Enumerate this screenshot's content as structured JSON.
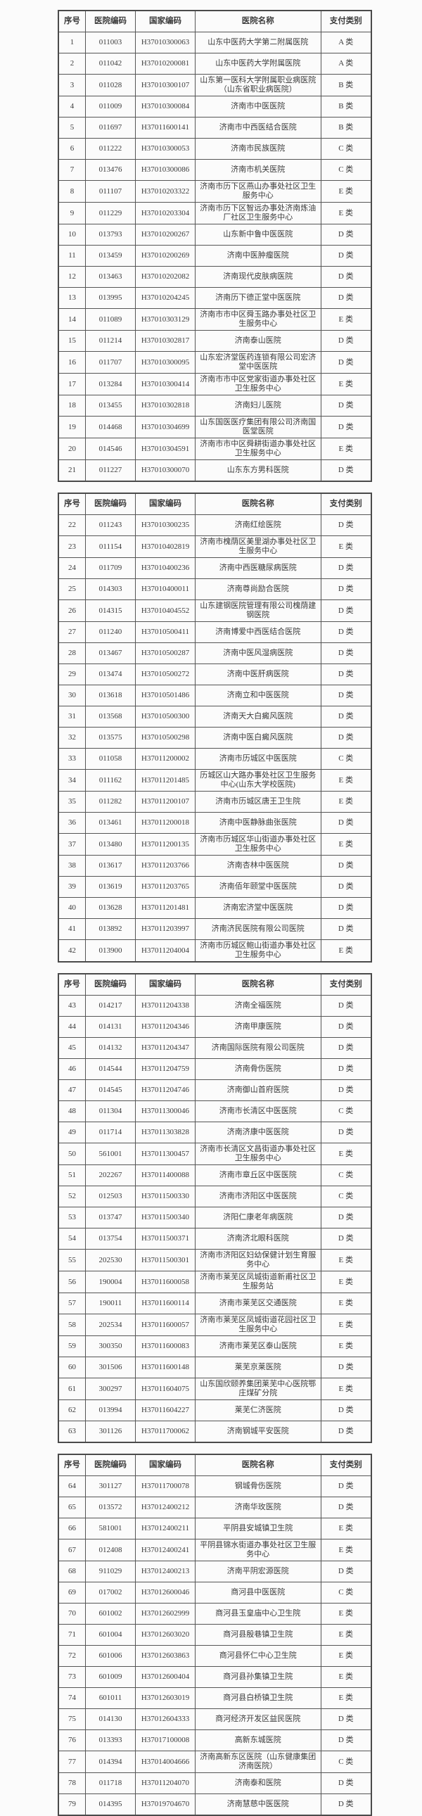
{
  "page": {
    "background": "#fbfbfb",
    "text_color": "#3b3b3b",
    "border_color": "#4a4a4a",
    "description_labels": {
      "document_type": "hospital-payment-category-list"
    }
  },
  "columns": [
    "序号",
    "医院编码",
    "国家编码",
    "医院名称",
    "支付类别"
  ],
  "tables": [
    {
      "rows": [
        [
          "1",
          "011003",
          "H37010300063",
          "山东中医药大学第二附属医院",
          "A 类"
        ],
        [
          "2",
          "011042",
          "H37010200081",
          "山东中医药大学附属医院",
          "A 类"
        ],
        [
          "3",
          "011028",
          "H37010300107",
          "山东第一医科大学附属职业病医院（山东省职业病医院）",
          "B 类"
        ],
        [
          "4",
          "011009",
          "H37010300084",
          "济南市中医医院",
          "B 类"
        ],
        [
          "5",
          "011697",
          "H37011600141",
          "济南市中西医结合医院",
          "B 类"
        ],
        [
          "6",
          "011222",
          "H37010300053",
          "济南市民族医院",
          "C 类"
        ],
        [
          "7",
          "013476",
          "H37010300086",
          "济南市机关医院",
          "C 类"
        ],
        [
          "8",
          "011107",
          "H37010203322",
          "济南市历下区燕山办事处社区卫生服务中心",
          "E 类"
        ],
        [
          "9",
          "011229",
          "H37010203304",
          "济南市历下区智远办事处济南炼油厂社区卫生服务中心",
          "E 类"
        ],
        [
          "10",
          "013793",
          "H37010200267",
          "山东新中鲁中医医院",
          "D 类"
        ],
        [
          "11",
          "013459",
          "H37010200269",
          "济南中医肿瘤医院",
          "D 类"
        ],
        [
          "12",
          "013463",
          "H37010202082",
          "济南现代皮肤病医院",
          "D 类"
        ],
        [
          "13",
          "013995",
          "H37010204245",
          "济南历下德正堂中医医院",
          "D 类"
        ],
        [
          "14",
          "011089",
          "H37010303129",
          "济南市市中区舜玉路办事处社区卫生服务中心",
          "E 类"
        ],
        [
          "15",
          "011214",
          "H37010302817",
          "济南泰山医院",
          "D 类"
        ],
        [
          "16",
          "011707",
          "H37010300095",
          "山东宏济堂医药连锁有限公司宏济堂中医医院",
          "D 类"
        ],
        [
          "17",
          "013284",
          "H37010300414",
          "济南市市中区党家街道办事处社区卫生服务中心",
          "E 类"
        ],
        [
          "18",
          "013455",
          "H37010302818",
          "济南妇儿医院",
          "D 类"
        ],
        [
          "19",
          "014468",
          "H37010304699",
          "山东国医医疗集团有限公司济南国医堂医院",
          "D 类"
        ],
        [
          "20",
          "014546",
          "H37010304591",
          "济南市市中区舜耕街道办事处社区卫生服务中心",
          "E 类"
        ],
        [
          "21",
          "011227",
          "H37010300070",
          "山东东方男科医院",
          "D 类"
        ]
      ]
    },
    {
      "rows": [
        [
          "22",
          "011243",
          "H37010300235",
          "济南红绘医院",
          "D 类"
        ],
        [
          "23",
          "011154",
          "H37010402819",
          "济南市槐荫区美里湖办事处社区卫生服务中心",
          "E 类"
        ],
        [
          "24",
          "011709",
          "H37010400236",
          "济南中西医糖尿病医院",
          "D 类"
        ],
        [
          "25",
          "014303",
          "H37010400011",
          "济南尊尚励合医院",
          "D 类"
        ],
        [
          "26",
          "014315",
          "H37010404552",
          "山东建钢医院管理有限公司槐荫建钢医院",
          "D 类"
        ],
        [
          "27",
          "011240",
          "H37010500411",
          "济南博爱中西医结合医院",
          "D 类"
        ],
        [
          "28",
          "013467",
          "H37010500287",
          "济南中医风湿病医院",
          "D 类"
        ],
        [
          "29",
          "013474",
          "H37010500272",
          "济南中医肝病医院",
          "D 类"
        ],
        [
          "30",
          "013618",
          "H37010501486",
          "济南立和中医医院",
          "D 类"
        ],
        [
          "31",
          "013568",
          "H37010500300",
          "济南天大白癜风医院",
          "D 类"
        ],
        [
          "32",
          "013575",
          "H37010500298",
          "济南中医白癜风医院",
          "D 类"
        ],
        [
          "33",
          "011058",
          "H37011200002",
          "济南市历城区中医医院",
          "C 类"
        ],
        [
          "34",
          "011162",
          "H37011201485",
          "历城区山大路办事处社区卫生服务中心(山东大学校医院)",
          "E 类"
        ],
        [
          "35",
          "011282",
          "H37011200107",
          "济南市历城区唐王卫生院",
          "E 类"
        ],
        [
          "36",
          "013461",
          "H37011200018",
          "济南中医静脉曲张医院",
          "D 类"
        ],
        [
          "37",
          "013480",
          "H37011200135",
          "济南市历城区华山街道办事处社区卫生服务中心",
          "E 类"
        ],
        [
          "38",
          "013617",
          "H37011203766",
          "济南杏林中医医院",
          "D 类"
        ],
        [
          "39",
          "013619",
          "H37011203765",
          "济南佰年颐堂中医医院",
          "D 类"
        ],
        [
          "40",
          "013628",
          "H37011201481",
          "济南宏济堂中医医院",
          "D 类"
        ],
        [
          "41",
          "013892",
          "H37011203997",
          "济南济民医院有限公司医院",
          "D 类"
        ],
        [
          "42",
          "013900",
          "H37011204004",
          "济南市历城区鲍山街道办事处社区卫生服务中心",
          "E 类"
        ]
      ]
    },
    {
      "rows": [
        [
          "43",
          "014217",
          "H37011204338",
          "济南全福医院",
          "D 类"
        ],
        [
          "44",
          "014131",
          "H37011204346",
          "济南甲康医院",
          "D 类"
        ],
        [
          "45",
          "014132",
          "H37011204347",
          "济南国际医院有限公司医院",
          "D 类"
        ],
        [
          "46",
          "014544",
          "H37011204759",
          "济南骨伤医院",
          "D 类"
        ],
        [
          "47",
          "014545",
          "H37011204746",
          "济南御山首府医院",
          "D 类"
        ],
        [
          "48",
          "011304",
          "H37011300046",
          "济南市长清区中医医院",
          "C 类"
        ],
        [
          "49",
          "011714",
          "H37011303828",
          "济南济康中医医院",
          "D 类"
        ],
        [
          "50",
          "561001",
          "H37011300457",
          "济南市长清区文昌街道办事处社区卫生服务中心",
          "E 类"
        ],
        [
          "51",
          "202267",
          "H37011400088",
          "济南市章丘区中医医院",
          "C 类"
        ],
        [
          "52",
          "012503",
          "H37011500330",
          "济南市济阳区中医医院",
          "C 类"
        ],
        [
          "53",
          "013747",
          "H37011500340",
          "济阳仁康老年病医院",
          "D 类"
        ],
        [
          "54",
          "013754",
          "H37011500371",
          "济南济北眼科医院",
          "D 类"
        ],
        [
          "55",
          "202530",
          "H37011500301",
          "济南市济阳区妇幼保健计划生育服务中心",
          "E 类"
        ],
        [
          "56",
          "190004",
          "H37011600058",
          "济南市莱芜区凤城街道新甫社区卫生服务站",
          "E 类"
        ],
        [
          "57",
          "190011",
          "H37011600114",
          "济南市莱芜区交通医院",
          "E 类"
        ],
        [
          "58",
          "202534",
          "H37011600057",
          "济南市莱芜区凤城街道花园社区卫生服务中心",
          "E 类"
        ],
        [
          "59",
          "300350",
          "H37011600083",
          "济南市莱芜区泰山医院",
          "E 类"
        ],
        [
          "60",
          "301506",
          "H37011600148",
          "莱芜京莱医院",
          "D 类"
        ],
        [
          "61",
          "300297",
          "H37011604075",
          "山东国欣颐养集团莱芜中心医院鄂庄煤矿分院",
          "E 类"
        ],
        [
          "62",
          "013994",
          "H37011604227",
          "莱芜仁济医院",
          "D 类"
        ],
        [
          "63",
          "301126",
          "H37011700062",
          "济南钢城平安医院",
          "D 类"
        ]
      ]
    },
    {
      "rows": [
        [
          "64",
          "301127",
          "H37011700078",
          "钢城骨伤医院",
          "D 类"
        ],
        [
          "65",
          "013572",
          "H37012400212",
          "济南华玫医院",
          "D 类"
        ],
        [
          "66",
          "581001",
          "H37012400211",
          "平阴县安城镇卫生院",
          "E 类"
        ],
        [
          "67",
          "012408",
          "H37012400241",
          "平阴县锦水街道办事处社区卫生服务中心",
          "E 类"
        ],
        [
          "68",
          "911029",
          "H37012400213",
          "济南平阴宏源医院",
          "D 类"
        ],
        [
          "69",
          "017002",
          "H37012600046",
          "商河县中医医院",
          "C 类"
        ],
        [
          "70",
          "601002",
          "H37012602999",
          "商河县玉皇庙中心卫生院",
          "E 类"
        ],
        [
          "71",
          "601004",
          "H37012603020",
          "商河县殷巷镇卫生院",
          "E 类"
        ],
        [
          "72",
          "601006",
          "H37012603863",
          "商河县怀仁中心卫生院",
          "E 类"
        ],
        [
          "73",
          "601009",
          "H37012600404",
          "商河县孙集镇卫生院",
          "E 类"
        ],
        [
          "74",
          "601011",
          "H37012603019",
          "商河县白桥镇卫生院",
          "E 类"
        ],
        [
          "75",
          "014130",
          "H37012604333",
          "商河经济开发区益民医院",
          "D 类"
        ],
        [
          "76",
          "013393",
          "H37017100008",
          "高新东城医院",
          "D 类"
        ],
        [
          "77",
          "014394",
          "H37014004666",
          "济南高新东区医院（山东健康集团济南医院）",
          "C 类"
        ],
        [
          "78",
          "011718",
          "H37011204070",
          "济南泰和医院",
          "D 类"
        ],
        [
          "79",
          "014395",
          "H37019704670",
          "济南慧慈中医医院",
          "D 类"
        ]
      ]
    }
  ]
}
